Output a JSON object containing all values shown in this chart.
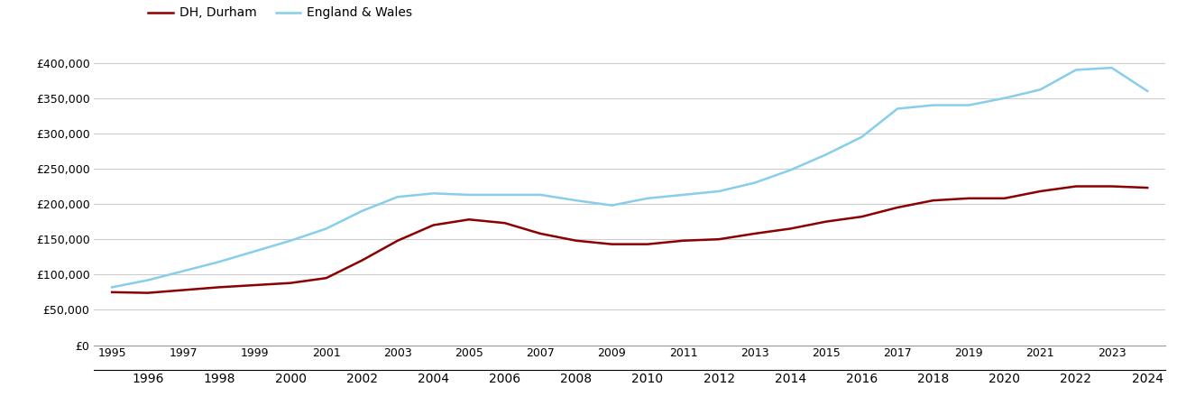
{
  "dh_durham_years": [
    1995,
    1996,
    1997,
    1998,
    1999,
    2000,
    2001,
    2002,
    2003,
    2004,
    2005,
    2006,
    2007,
    2008,
    2009,
    2010,
    2011,
    2012,
    2013,
    2014,
    2015,
    2016,
    2017,
    2018,
    2019,
    2020,
    2021,
    2022,
    2023,
    2024
  ],
  "dh_durham_values": [
    75000,
    74000,
    78000,
    82000,
    85000,
    88000,
    95000,
    120000,
    148000,
    170000,
    178000,
    173000,
    158000,
    148000,
    143000,
    143000,
    148000,
    150000,
    158000,
    165000,
    175000,
    182000,
    195000,
    205000,
    208000,
    208000,
    218000,
    225000,
    225000,
    223000
  ],
  "england_wales_years": [
    1995,
    1996,
    1997,
    1998,
    1999,
    2000,
    2001,
    2002,
    2003,
    2004,
    2005,
    2006,
    2007,
    2008,
    2009,
    2010,
    2011,
    2012,
    2013,
    2014,
    2015,
    2016,
    2017,
    2018,
    2019,
    2020,
    2021,
    2022,
    2023,
    2024
  ],
  "england_wales_values": [
    82000,
    92000,
    105000,
    118000,
    133000,
    148000,
    165000,
    190000,
    210000,
    215000,
    213000,
    213000,
    213000,
    205000,
    198000,
    208000,
    213000,
    218000,
    230000,
    248000,
    270000,
    295000,
    335000,
    340000,
    340000,
    350000,
    362000,
    390000,
    393000,
    360000
  ],
  "dh_color": "#8B0000",
  "ew_color": "#87CEEB",
  "legend_labels": [
    "DH, Durham",
    "England & Wales"
  ],
  "ylim": [
    0,
    420000
  ],
  "yticks": [
    0,
    50000,
    100000,
    150000,
    200000,
    250000,
    300000,
    350000,
    400000
  ],
  "xlim": [
    1994.5,
    2024.5
  ],
  "xticks_odd": [
    1995,
    1997,
    1999,
    2001,
    2003,
    2005,
    2007,
    2009,
    2011,
    2013,
    2015,
    2017,
    2019,
    2021,
    2023
  ],
  "xticks_even": [
    1996,
    1998,
    2000,
    2002,
    2004,
    2006,
    2008,
    2010,
    2012,
    2014,
    2016,
    2018,
    2020,
    2022,
    2024
  ],
  "background_color": "#ffffff",
  "grid_color": "#cccccc",
  "line_width": 1.8,
  "legend_fontsize": 10,
  "tick_fontsize": 9
}
